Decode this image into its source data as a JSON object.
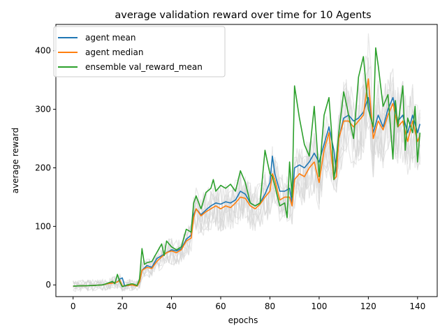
{
  "chart_data": {
    "type": "line",
    "title": "average validation reward over time for 10 Agents",
    "xlabel": "epochs",
    "ylabel": "average reward",
    "xlim": [
      -7,
      148
    ],
    "ylim": [
      -20,
      445
    ],
    "xticks": [
      0,
      20,
      40,
      60,
      80,
      100,
      120,
      140
    ],
    "yticks": [
      0,
      100,
      200,
      300,
      400
    ],
    "grid": false,
    "legend_position": "top-left",
    "x": {
      "start": 0,
      "end": 141,
      "step": 1
    },
    "series": [
      {
        "name": "agent mean",
        "color": "#1f77b4",
        "anchors": [
          [
            0,
            -2
          ],
          [
            8,
            -1
          ],
          [
            12,
            0
          ],
          [
            14,
            2
          ],
          [
            16,
            4
          ],
          [
            18,
            5
          ],
          [
            19,
            10
          ],
          [
            20,
            12
          ],
          [
            21,
            -2
          ],
          [
            24,
            0
          ],
          [
            26,
            -2
          ],
          [
            27,
            5
          ],
          [
            28,
            25
          ],
          [
            30,
            33
          ],
          [
            32,
            30
          ],
          [
            34,
            45
          ],
          [
            36,
            50
          ],
          [
            38,
            55
          ],
          [
            40,
            60
          ],
          [
            42,
            58
          ],
          [
            44,
            62
          ],
          [
            46,
            78
          ],
          [
            48,
            85
          ],
          [
            49,
            120
          ],
          [
            50,
            130
          ],
          [
            52,
            120
          ],
          [
            54,
            128
          ],
          [
            56,
            135
          ],
          [
            58,
            140
          ],
          [
            60,
            138
          ],
          [
            62,
            142
          ],
          [
            64,
            140
          ],
          [
            66,
            145
          ],
          [
            68,
            160
          ],
          [
            70,
            155
          ],
          [
            72,
            140
          ],
          [
            74,
            135
          ],
          [
            76,
            140
          ],
          [
            78,
            155
          ],
          [
            80,
            175
          ],
          [
            81,
            220
          ],
          [
            82,
            190
          ],
          [
            84,
            160
          ],
          [
            86,
            160
          ],
          [
            88,
            165
          ],
          [
            89,
            140
          ],
          [
            90,
            200
          ],
          [
            92,
            205
          ],
          [
            94,
            200
          ],
          [
            96,
            210
          ],
          [
            98,
            225
          ],
          [
            100,
            210
          ],
          [
            102,
            240
          ],
          [
            104,
            270
          ],
          [
            106,
            230
          ],
          [
            107,
            190
          ],
          [
            108,
            250
          ],
          [
            110,
            285
          ],
          [
            112,
            290
          ],
          [
            114,
            280
          ],
          [
            116,
            285
          ],
          [
            118,
            295
          ],
          [
            120,
            320
          ],
          [
            122,
            260
          ],
          [
            124,
            290
          ],
          [
            126,
            270
          ],
          [
            128,
            300
          ],
          [
            130,
            320
          ],
          [
            132,
            280
          ],
          [
            134,
            290
          ],
          [
            136,
            260
          ],
          [
            138,
            290
          ],
          [
            140,
            260
          ],
          [
            141,
            275
          ]
        ]
      },
      {
        "name": "agent median",
        "color": "#ff7f0e",
        "anchors": [
          [
            0,
            -2
          ],
          [
            8,
            -1
          ],
          [
            12,
            0
          ],
          [
            14,
            2
          ],
          [
            16,
            3
          ],
          [
            18,
            5
          ],
          [
            19,
            8
          ],
          [
            20,
            -2
          ],
          [
            24,
            0
          ],
          [
            26,
            -2
          ],
          [
            27,
            5
          ],
          [
            28,
            25
          ],
          [
            30,
            30
          ],
          [
            32,
            28
          ],
          [
            34,
            40
          ],
          [
            36,
            48
          ],
          [
            38,
            55
          ],
          [
            40,
            58
          ],
          [
            42,
            55
          ],
          [
            44,
            60
          ],
          [
            46,
            75
          ],
          [
            48,
            80
          ],
          [
            49,
            115
          ],
          [
            50,
            130
          ],
          [
            52,
            118
          ],
          [
            54,
            125
          ],
          [
            56,
            130
          ],
          [
            58,
            135
          ],
          [
            60,
            130
          ],
          [
            62,
            135
          ],
          [
            64,
            132
          ],
          [
            66,
            140
          ],
          [
            68,
            150
          ],
          [
            70,
            148
          ],
          [
            72,
            135
          ],
          [
            74,
            130
          ],
          [
            76,
            138
          ],
          [
            78,
            150
          ],
          [
            80,
            160
          ],
          [
            81,
            190
          ],
          [
            82,
            180
          ],
          [
            84,
            145
          ],
          [
            86,
            150
          ],
          [
            88,
            150
          ],
          [
            89,
            135
          ],
          [
            90,
            180
          ],
          [
            92,
            190
          ],
          [
            94,
            185
          ],
          [
            96,
            200
          ],
          [
            98,
            210
          ],
          [
            100,
            175
          ],
          [
            102,
            230
          ],
          [
            104,
            260
          ],
          [
            106,
            180
          ],
          [
            107,
            185
          ],
          [
            108,
            250
          ],
          [
            110,
            280
          ],
          [
            112,
            280
          ],
          [
            114,
            270
          ],
          [
            116,
            280
          ],
          [
            118,
            290
          ],
          [
            120,
            352
          ],
          [
            122,
            250
          ],
          [
            124,
            280
          ],
          [
            126,
            265
          ],
          [
            128,
            290
          ],
          [
            130,
            310
          ],
          [
            132,
            270
          ],
          [
            134,
            280
          ],
          [
            136,
            245
          ],
          [
            138,
            280
          ],
          [
            140,
            245
          ],
          [
            141,
            255
          ]
        ]
      },
      {
        "name": "ensemble val_reward_mean",
        "color": "#2ca02c",
        "anchors": [
          [
            0,
            -2
          ],
          [
            8,
            -1
          ],
          [
            12,
            0
          ],
          [
            14,
            3
          ],
          [
            16,
            6
          ],
          [
            17,
            2
          ],
          [
            18,
            18
          ],
          [
            19,
            5
          ],
          [
            20,
            -3
          ],
          [
            22,
            0
          ],
          [
            24,
            2
          ],
          [
            26,
            -1
          ],
          [
            27,
            10
          ],
          [
            28,
            62
          ],
          [
            29,
            35
          ],
          [
            30,
            38
          ],
          [
            32,
            40
          ],
          [
            34,
            55
          ],
          [
            36,
            70
          ],
          [
            37,
            50
          ],
          [
            38,
            75
          ],
          [
            40,
            65
          ],
          [
            42,
            60
          ],
          [
            44,
            65
          ],
          [
            46,
            95
          ],
          [
            48,
            90
          ],
          [
            49,
            140
          ],
          [
            50,
            152
          ],
          [
            52,
            130
          ],
          [
            54,
            158
          ],
          [
            56,
            165
          ],
          [
            57,
            180
          ],
          [
            58,
            160
          ],
          [
            60,
            170
          ],
          [
            62,
            165
          ],
          [
            64,
            172
          ],
          [
            66,
            160
          ],
          [
            68,
            195
          ],
          [
            70,
            175
          ],
          [
            72,
            140
          ],
          [
            74,
            135
          ],
          [
            76,
            140
          ],
          [
            78,
            230
          ],
          [
            80,
            190
          ],
          [
            81,
            185
          ],
          [
            82,
            170
          ],
          [
            84,
            135
          ],
          [
            86,
            140
          ],
          [
            87,
            115
          ],
          [
            88,
            210
          ],
          [
            89,
            150
          ],
          [
            90,
            340
          ],
          [
            92,
            285
          ],
          [
            94,
            240
          ],
          [
            96,
            220
          ],
          [
            98,
            305
          ],
          [
            100,
            185
          ],
          [
            102,
            290
          ],
          [
            104,
            320
          ],
          [
            105,
            265
          ],
          [
            106,
            180
          ],
          [
            107,
            215
          ],
          [
            108,
            260
          ],
          [
            110,
            330
          ],
          [
            112,
            290
          ],
          [
            114,
            250
          ],
          [
            116,
            355
          ],
          [
            118,
            390
          ],
          [
            120,
            300
          ],
          [
            122,
            270
          ],
          [
            123,
            405
          ],
          [
            124,
            375
          ],
          [
            126,
            305
          ],
          [
            128,
            325
          ],
          [
            130,
            215
          ],
          [
            131,
            315
          ],
          [
            132,
            270
          ],
          [
            134,
            340
          ],
          [
            135,
            230
          ],
          [
            136,
            285
          ],
          [
            138,
            260
          ],
          [
            139,
            305
          ],
          [
            140,
            210
          ],
          [
            141,
            260
          ]
        ]
      }
    ],
    "background_agents": {
      "count": 10,
      "color": "#d3d3d3"
    },
    "legend": [
      "agent mean",
      "agent median",
      "ensemble val_reward_mean"
    ]
  }
}
